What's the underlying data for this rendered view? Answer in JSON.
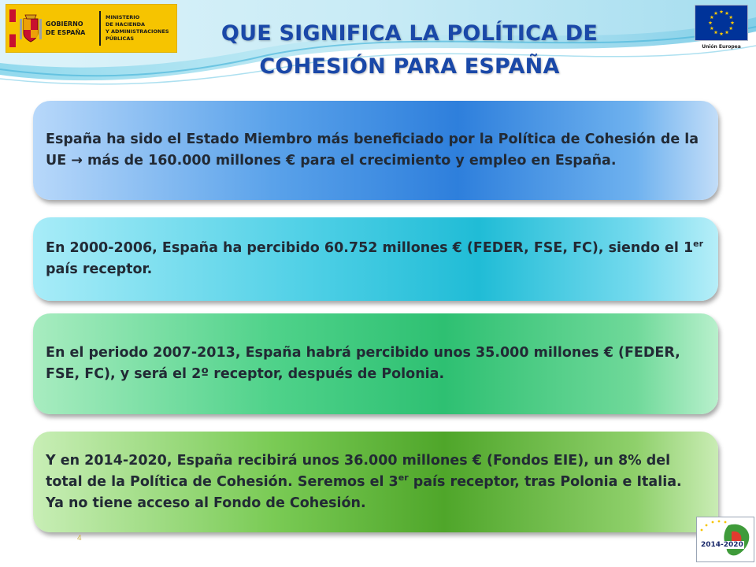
{
  "header": {
    "gov_logo": {
      "name_line1": "GOBIERNO",
      "name_line2": "DE ESPAÑA",
      "ministry_line1": "MINISTERIO",
      "ministry_line2": "DE HACIENDA",
      "ministry_line3": "Y ADMINISTRACIONES",
      "ministry_line4": "PÚBLICAS",
      "icon": "spain-coat-of-arms-icon"
    },
    "eu_logo": {
      "caption": "Unión Europea",
      "icon": "eu-flag-icon"
    },
    "title_line1": "QUE SIGNIFICA LA POLÍTICA DE",
    "title_line2": "COHESIÓN PARA ESPAÑA"
  },
  "boxes": [
    {
      "text_before": "España ha sido el Estado Miembro más beneficiado por la Política de Cohesión de la UE ",
      "arrow": "→",
      "text_after": " más de 160.000 millones € para el crecimiento y empleo en España."
    },
    {
      "text_before": "En 2000-2006, España ha percibido 60.752 millones € (FEDER, FSE, FC), siendo el 1",
      "sup": "er",
      "text_after": " país receptor."
    },
    {
      "text": "En el periodo 2007-2013, España habrá percibido unos 35.000 millones € (FEDER, FSE, FC), y será el 2º receptor, después de Polonia."
    },
    {
      "text_before": "Y en 2014-2020, España recibirá unos 36.000 millones € (Fondos EIE), un 8% del total de la Política de Cohesión. Seremos el 3",
      "sup": "er",
      "text_after": " país receptor, tras Polonia e Italia. Ya no tiene acceso al Fondo de Cohesión."
    }
  ],
  "footer": {
    "page_number": "4",
    "period_logo_label": "2014-2020"
  },
  "colors": {
    "title": "#1a48a8",
    "box1": "#2e7fdc",
    "box2": "#20bcd6",
    "box3": "#2ec072",
    "box4": "#4fa62a",
    "gov_yellow": "#f6c400",
    "eu_blue": "#003399"
  }
}
